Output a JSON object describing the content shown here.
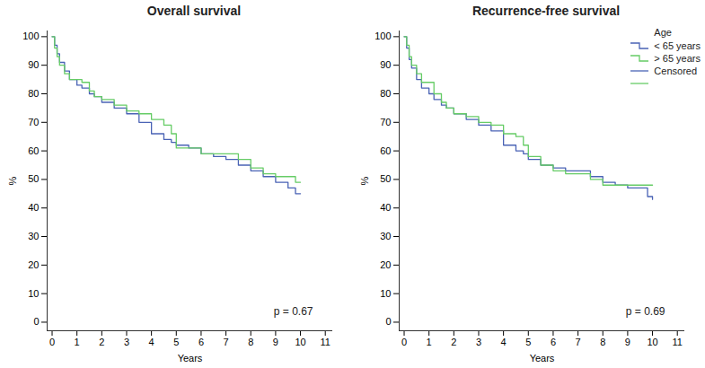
{
  "chart_data": [
    {
      "type": "step",
      "title": "Overall survival",
      "x_label": "Years",
      "y_label": "%",
      "x": [
        0,
        0.1,
        0.2,
        0.3,
        0.5,
        0.7,
        1,
        1.2,
        1.5,
        1.7,
        2,
        2.5,
        3,
        3.5,
        4,
        4.5,
        4.8,
        5,
        5.5,
        6,
        6.5,
        7,
        7.5,
        8,
        8.5,
        9,
        9.5,
        9.8,
        10
      ],
      "series": [
        {
          "name": "< 65 years",
          "color": "#4a63b5",
          "marker": "plus",
          "values": [
            100,
            97,
            94,
            91,
            88,
            85,
            83,
            82,
            80,
            79,
            77,
            75,
            73,
            70,
            66,
            64,
            63,
            62,
            61,
            59,
            58,
            57,
            55,
            53,
            51,
            49,
            47,
            45,
            45
          ],
          "censored_x": [
            0.1,
            1.0,
            1.1,
            3.2,
            3.4,
            4.2,
            5.9,
            6.2,
            7.0,
            9.9,
            10.0
          ]
        },
        {
          "name": "> 65 years",
          "color": "#66cc66",
          "marker": "plus",
          "values": [
            100,
            96,
            93,
            90,
            87,
            85,
            85,
            84,
            81,
            79,
            78,
            76,
            74,
            73,
            71,
            69,
            66,
            61,
            61,
            59,
            59,
            59,
            57,
            54,
            52,
            51,
            51,
            49,
            49
          ],
          "censored_x": [
            0.05,
            1.6,
            4.1,
            4.4,
            4.5,
            6.8,
            7.7,
            8.1,
            8.8,
            9.8,
            10.0
          ]
        }
      ],
      "xlim": [
        -0.2,
        11.3
      ],
      "xticks": [
        0,
        1,
        2,
        3,
        4,
        5,
        6,
        7,
        8,
        9,
        10,
        11
      ],
      "ylim": [
        -3,
        102
      ],
      "yticks": [
        0,
        10,
        20,
        30,
        40,
        50,
        60,
        70,
        80,
        90,
        100
      ],
      "annotation": "p = 0.67"
    },
    {
      "type": "step",
      "title": "Recurrence-free survival",
      "x_label": "Years",
      "y_label": "%",
      "x": [
        0,
        0.1,
        0.2,
        0.3,
        0.5,
        0.7,
        1,
        1.2,
        1.5,
        1.7,
        2,
        2.5,
        3,
        3.5,
        4,
        4.5,
        4.8,
        5,
        5.5,
        6,
        6.5,
        7,
        7.5,
        8,
        8.5,
        9,
        9.5,
        9.8,
        10
      ],
      "series": [
        {
          "name": "< 65 years",
          "color": "#4a63b5",
          "marker": "plus",
          "values": [
            100,
            96,
            92,
            89,
            85,
            82,
            80,
            78,
            76,
            75,
            73,
            71,
            69,
            67,
            62,
            60,
            59,
            57,
            55,
            54,
            53,
            53,
            51,
            49,
            48,
            47,
            47,
            44,
            43
          ],
          "censored_x": [
            0.1,
            1.0,
            3.5,
            4.3,
            6.2,
            7.0,
            9.9
          ]
        },
        {
          "name": "> 65 years",
          "color": "#66cc66",
          "marker": "plus",
          "values": [
            100,
            97,
            93,
            90,
            87,
            84,
            84,
            80,
            77,
            75,
            73,
            72,
            70,
            69,
            66,
            65,
            62,
            58,
            55,
            53,
            52,
            52,
            50,
            48,
            48,
            48,
            48,
            48,
            48
          ],
          "censored_x": [
            0.05,
            0.8,
            3.8,
            4.4,
            4.6,
            8.1,
            9.8,
            10.0
          ]
        }
      ],
      "xlim": [
        -0.2,
        11.3
      ],
      "xticks": [
        0,
        1,
        2,
        3,
        4,
        5,
        6,
        7,
        8,
        9,
        10,
        11
      ],
      "ylim": [
        -3,
        102
      ],
      "yticks": [
        0,
        10,
        20,
        30,
        40,
        50,
        60,
        70,
        80,
        90,
        100
      ],
      "annotation": "p = 0.69",
      "legend": "top-right",
      "legend_title": "Age",
      "censored_label": "Censored"
    }
  ]
}
